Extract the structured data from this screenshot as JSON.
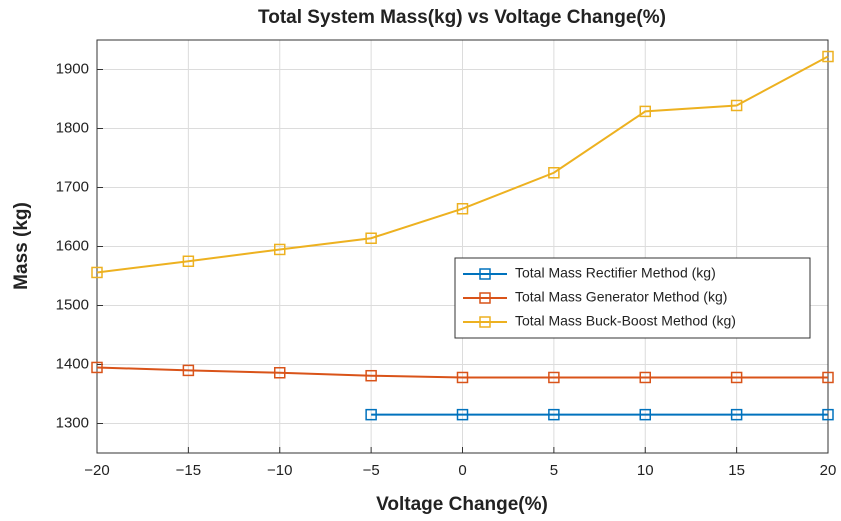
{
  "chart_data": {
    "type": "line",
    "title": "Total System Mass(kg) vs Voltage Change(%)",
    "x_label": "Voltage Change(%)",
    "y_label": "Mass (kg)",
    "x": [
      -20,
      -15,
      -10,
      -5,
      0,
      5,
      10,
      15,
      20
    ],
    "series": [
      {
        "name": "Total Mass Rectifier Method (kg)",
        "color": "#0072bd",
        "values": [
          null,
          null,
          null,
          1315,
          1315,
          1315,
          1315,
          1315,
          1315
        ]
      },
      {
        "name": "Total Mass Generator Method (kg)",
        "color": "#d95319",
        "values": [
          1395,
          1390,
          1386,
          1381,
          1378,
          1378,
          1378,
          1378,
          1378
        ]
      },
      {
        "name": "Total Mass Buck-Boost Method (kg)",
        "color": "#edb120",
        "values": [
          1556,
          1575,
          1595,
          1614,
          1664,
          1725,
          1829,
          1839,
          1922
        ]
      }
    ],
    "xlim": [
      -20,
      20
    ],
    "xticks": [
      {
        "value": -20,
        "label": "−20"
      },
      {
        "value": -15,
        "label": "−15"
      },
      {
        "value": -10,
        "label": "−10"
      },
      {
        "value": -5,
        "label": "−5"
      },
      0,
      5,
      10,
      15,
      20
    ],
    "ylim": [
      1250,
      1950
    ],
    "yticks": [
      1300,
      1400,
      1500,
      1600,
      1700,
      1800,
      1900
    ],
    "grid": true,
    "legend": "right"
  }
}
